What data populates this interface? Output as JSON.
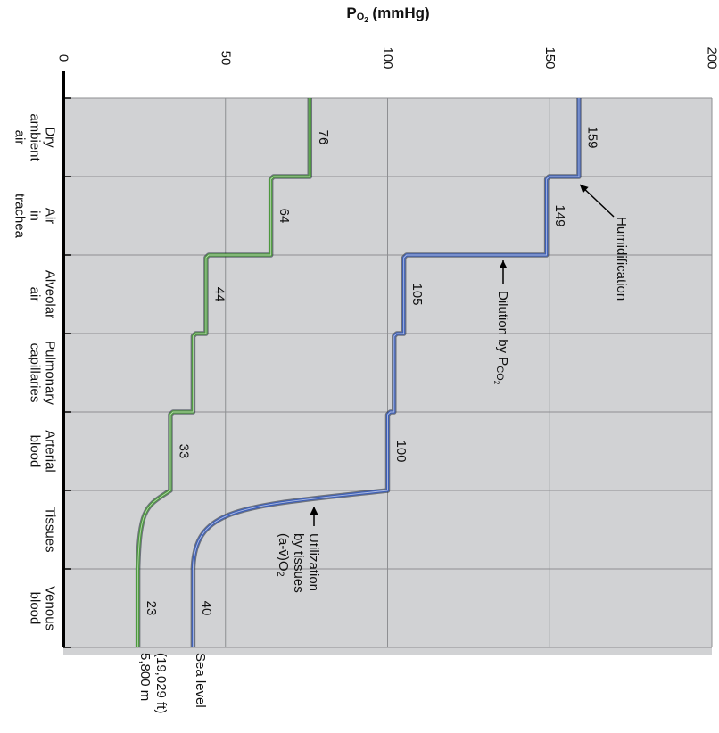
{
  "chart_data": {
    "type": "line",
    "title": "",
    "xlabel": "",
    "ylabel": {
      "base": "P",
      "sub1": "O",
      "sub2": "2",
      "rest": " (mmHg)"
    },
    "ylim": [
      0,
      200
    ],
    "yticks": [
      0,
      50,
      100,
      150,
      200
    ],
    "grid": true,
    "categories": [
      [
        "Dry",
        "ambient",
        "air"
      ],
      [
        "Air",
        "in",
        "trachea"
      ],
      [
        "Alveolar",
        "air"
      ],
      [
        "Pulmonary",
        "capillaries"
      ],
      [
        "Arterial",
        "blood"
      ],
      [
        "Tissues"
      ],
      [
        "Venous",
        "blood"
      ]
    ],
    "series": [
      {
        "name": [
          "Sea level"
        ],
        "color": "#3d5fb8",
        "steps": [
          159,
          149,
          105,
          102,
          100,
          40,
          40
        ],
        "labels": [
          {
            "text": "159",
            "segment": 0
          },
          {
            "text": "149",
            "segment": 1
          },
          {
            "text": "105",
            "segment": 2
          },
          {
            "text": "100",
            "segment": 4
          },
          {
            "text": "40",
            "segment": 6
          }
        ]
      },
      {
        "name": [
          "5,800 m",
          "(19,029 ft)"
        ],
        "color": "#4c9a3c",
        "steps": [
          76,
          64,
          44,
          40,
          33,
          23,
          23
        ],
        "labels": [
          {
            "text": "76",
            "segment": 0
          },
          {
            "text": "64",
            "segment": 1
          },
          {
            "text": "44",
            "segment": 2
          },
          {
            "text": "33",
            "segment": 4
          },
          {
            "text": "23",
            "segment": 6
          }
        ]
      }
    ],
    "annotations": [
      {
        "lines": [
          {
            "text": "Humidification"
          }
        ]
      },
      {
        "lines": [
          {
            "text": "Dilution by P",
            "sub": "CO",
            "sub2": "2"
          }
        ]
      },
      {
        "lines": [
          {
            "text": "Utilization"
          },
          {
            "text": "by tissues"
          },
          {
            "text": "(a-v̄)O",
            "sub": "2"
          }
        ]
      }
    ]
  }
}
